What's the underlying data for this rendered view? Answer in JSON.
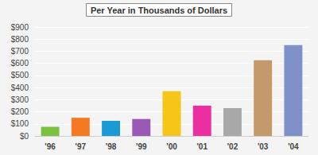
{
  "chart_data": {
    "type": "bar",
    "title": "Per Year in Thousands of Dollars",
    "categories": [
      "'96",
      "'97",
      "'98",
      "'99",
      "'00",
      "'01",
      "'02",
      "'03",
      "'04"
    ],
    "values": [
      75,
      150,
      125,
      140,
      370,
      250,
      230,
      625,
      750
    ],
    "colors": [
      "#7bc142",
      "#f47920",
      "#1b9ad6",
      "#9b59b6",
      "#f5c518",
      "#eb2fa0",
      "#a8a8a8",
      "#c49a6c",
      "#8090c8"
    ],
    "ylim": [
      0,
      900
    ],
    "yticks": [
      {
        "value": 0,
        "label": "$0"
      },
      {
        "value": 100,
        "label": "$100"
      },
      {
        "value": 200,
        "label": "$200"
      },
      {
        "value": 300,
        "label": "$300"
      },
      {
        "value": 400,
        "label": "$400"
      },
      {
        "value": 500,
        "label": "$500"
      },
      {
        "value": 600,
        "label": "$600"
      },
      {
        "value": 700,
        "label": "$700"
      },
      {
        "value": 800,
        "label": "$800"
      },
      {
        "value": 900,
        "label": "$900"
      }
    ],
    "grid": true
  }
}
